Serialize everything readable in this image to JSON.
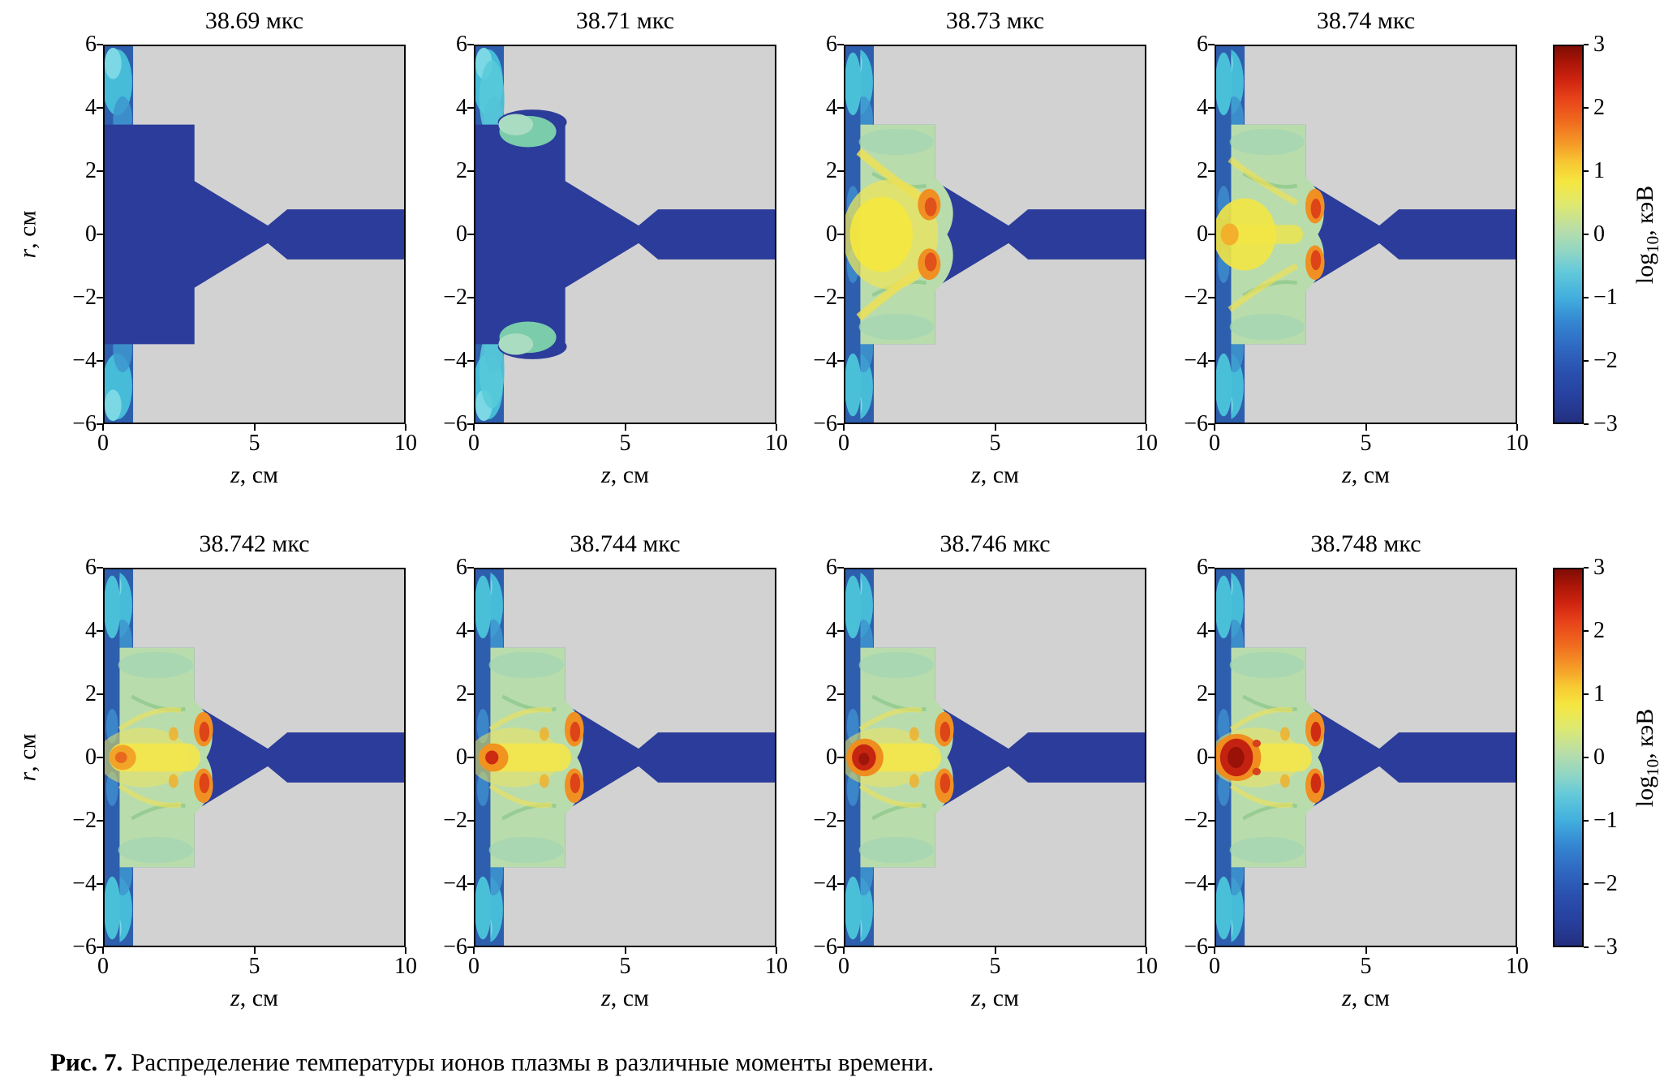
{
  "figure": {
    "caption_label": "Рис. 7.",
    "caption_text": "Распределение температуры ионов плазмы в различные моменты времени."
  },
  "axes": {
    "xlabel": "z, см",
    "ylabel": "r, см",
    "x_ticks": [
      "0",
      "5",
      "10"
    ],
    "y_ticks": [
      "6",
      "4",
      "2",
      "0",
      "−2",
      "−4",
      "−6"
    ]
  },
  "colorbar": {
    "label": "log10, кэВ",
    "ticks": [
      "3",
      "2",
      "1",
      "0",
      "−1",
      "−2",
      "−3"
    ],
    "gradient": [
      [
        "#7e0d05",
        "0%"
      ],
      [
        "#a81507",
        "4%"
      ],
      [
        "#cf2410",
        "9%"
      ],
      [
        "#e8431a",
        "14%"
      ],
      [
        "#f06a1e",
        "20%"
      ],
      [
        "#f59b27",
        "26%"
      ],
      [
        "#f7c832",
        "31%"
      ],
      [
        "#f5e63f",
        "36%"
      ],
      [
        "#dfe96f",
        "42%"
      ],
      [
        "#b7ddaa",
        "49%"
      ],
      [
        "#8dd5c6",
        "55%"
      ],
      [
        "#62c9da",
        "60%"
      ],
      [
        "#41aede",
        "67%"
      ],
      [
        "#3588d2",
        "73%"
      ],
      [
        "#2f68c2",
        "80%"
      ],
      [
        "#2a4fae",
        "87%"
      ],
      [
        "#27419f",
        "93%"
      ],
      [
        "#232f80",
        "100%"
      ]
    ]
  },
  "panels": [
    {
      "title": "38.69 мкс",
      "stage": 0
    },
    {
      "title": "38.71 мкс",
      "stage": 1
    },
    {
      "title": "38.73 мкс",
      "stage": 2
    },
    {
      "title": "38.74 мкс",
      "stage": 3
    },
    {
      "title": "38.742 мкс",
      "stage": 4
    },
    {
      "title": "38.744 мкс",
      "stage": 5
    },
    {
      "title": "38.746 мкс",
      "stage": 6
    },
    {
      "title": "38.748 мкс",
      "stage": 7
    }
  ],
  "chart_data": {
    "type": "heatmap",
    "title": "Распределение температуры ионов плазмы в различные моменты времени",
    "grid": "2 строки × 4 столбца снимков по времени; общая цветовая шкала справа в каждой строке",
    "x": {
      "label": "z, см",
      "range": [
        0,
        10
      ],
      "ticks": [
        0,
        5,
        10
      ]
    },
    "y": {
      "label": "r, см",
      "range": [
        -6,
        6
      ],
      "ticks": [
        6,
        4,
        2,
        0,
        -2,
        -4,
        -6
      ]
    },
    "color": {
      "label": "log10(T), кэВ",
      "range": [
        -3,
        3
      ],
      "ticks": [
        3,
        2,
        1,
        0,
        -1,
        -2,
        -3
      ],
      "colormap": "jet"
    },
    "geometry": {
      "chamber_z": [
        0,
        3
      ],
      "chamber_r": [
        -3.5,
        3.5
      ],
      "nozzle_throat_z": 5.4,
      "outlet_channel_r": [
        -0.8,
        0.8
      ],
      "channel_z_end": 10,
      "turbulent_layer_z": [
        0,
        1
      ]
    },
    "snapshots": [
      {
        "time_mks": 38.69,
        "features": "Холодная стадия: камера (z 0–3, |r|≤3.5) и сопловой канал однородно тёмно-синие, T≈10⁻³–10⁻² кэВ; турбулентный сине-голубой слой у z≈0–1 по всей высоте."
      },
      {
        "time_mks": 38.71,
        "features": "У верхней и нижней границ камеры (z≈1–3, r≈±3–3.5) появляются зелёно-голубые области прогрева до ~10⁻¹–1 кэВ; канал по-прежнему холодный."
      },
      {
        "time_mks": 38.73,
        "features": "Камера прогрета до ~1 кэВ (светло-зелёная); жёлтое ядро ~10 кэВ у оси (z≈0.5–2.5); оранжевые максимумы у входа в сопло (z≈2.8, r≈±0.9); канал z>3.3 холодный."
      },
      {
        "time_mks": 38.74,
        "features": "Жёлтая зона сжимается к оси (z 0–1.5); оранжевые горячие пятна смещаются к z≈3.3, r≈±1; фон камеры ~1 кэВ."
      },
      {
        "time_mks": 38.742,
        "features": "Жёлтый шнур ~10 кэВ вдоль оси (z 0–3, |r|≲0.4); оранжевые пятна у горловины; начало формирования горячего ядра у z≈0.6."
      },
      {
        "time_mks": 38.744,
        "features": "Красное ядро T~10² кэВ у оси (z≈0.6, r≈0) с оранжевым ореолом; жёлтый шнур и оранжевые пятна у горловины сохраняются."
      },
      {
        "time_mks": 38.746,
        "features": "Красное ядро растёт (z≈0.4–1.0, |r|≲0.4), T~10²–10³ кэВ; остальная камера ~1 кэВ."
      },
      {
        "time_mks": 38.748,
        "features": "Максимальный прогрев: красное ядро z≈0.3–1.2, |r|≲0.5, T до ~10³ кэВ; оранжево-красные пятна у входа в сопло; канал z>4 остаётся холодным (10⁻³ кэВ)."
      }
    ]
  }
}
